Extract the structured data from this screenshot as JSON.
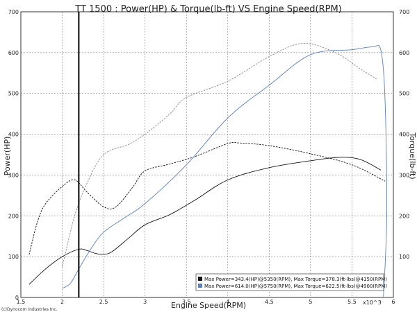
{
  "chart_data": {
    "type": "line",
    "title": "TT 1500 : Power(HP) & Torque(lb-ft) VS Engine Speed(RPM)",
    "xlabel": "Engine Speed(RPM)",
    "ylabel_left": "Power(HP)",
    "ylabel_right": "Torque(lb-ft)",
    "x_multiplier": "x10^3",
    "xlim": [
      1.5,
      6
    ],
    "ylim": [
      0,
      700
    ],
    "x_ticks": [
      "1.5",
      "2",
      "2.5",
      "3",
      "3.5",
      "4",
      "4.5",
      "5",
      "5.5",
      "6"
    ],
    "y_ticks_left": [
      "0",
      "100",
      "200",
      "300",
      "400",
      "500",
      "600",
      "700"
    ],
    "y_ticks_right": [
      "100",
      "200",
      "300",
      "400",
      "500",
      "600",
      "700"
    ],
    "grid": true,
    "marker_rpm": 2.2,
    "legend": {
      "position": "bottom-right",
      "entries": [
        {
          "label": "Max Power=343.4(HP)@5350(RPM), Max Torque=378.3(ft-lbs)@4150(RPM)",
          "color": "#111111"
        },
        {
          "label": "Max Power=614.0(HP)@5750(RPM), Max Torque=622.5(ft-lbs)@4900(RPM)",
          "color": "#5b7fc7"
        }
      ]
    },
    "series": [
      {
        "run": 1,
        "quantity": "power",
        "color": "#111111",
        "dashed": false,
        "x": [
          1.6,
          1.8,
          2.0,
          2.2,
          2.3,
          2.4,
          2.5,
          2.6,
          2.8,
          3.0,
          3.3,
          3.6,
          4.0,
          4.5,
          5.0,
          5.35,
          5.6,
          5.85
        ],
        "y": [
          32,
          70,
          100,
          118,
          115,
          108,
          106,
          112,
          145,
          178,
          203,
          238,
          288,
          318,
          335,
          343.4,
          338,
          312
        ]
      },
      {
        "run": 1,
        "quantity": "torque",
        "color": "#111111",
        "dashed": true,
        "x": [
          1.6,
          1.7,
          1.8,
          2.0,
          2.15,
          2.3,
          2.5,
          2.65,
          2.85,
          3.0,
          3.3,
          3.6,
          4.0,
          4.15,
          4.5,
          5.0,
          5.5,
          5.9
        ],
        "y": [
          105,
          185,
          230,
          272,
          288,
          258,
          222,
          222,
          270,
          310,
          327,
          345,
          377,
          378.3,
          372,
          352,
          325,
          285
        ]
      },
      {
        "run": 2,
        "quantity": "power",
        "color": "#5b7fc7",
        "dashed": false,
        "x": [
          2.0,
          2.1,
          2.2,
          2.35,
          2.5,
          2.75,
          3.0,
          3.5,
          4.0,
          4.5,
          5.0,
          5.5,
          5.75,
          5.85,
          5.9,
          5.92,
          5.88
        ],
        "y": [
          22,
          35,
          70,
          120,
          160,
          195,
          230,
          325,
          440,
          520,
          595,
          607,
          614,
          605,
          480,
          200,
          0
        ]
      },
      {
        "run": 2,
        "quantity": "torque",
        "color": "#8a8a8a",
        "dashed": true,
        "x": [
          2.0,
          2.15,
          2.3,
          2.5,
          2.8,
          3.0,
          3.3,
          3.5,
          4.0,
          4.5,
          4.9,
          5.3,
          5.6,
          5.8
        ],
        "y": [
          75,
          200,
          280,
          350,
          375,
          400,
          450,
          490,
          530,
          590,
          622.5,
          600,
          560,
          535
        ]
      }
    ]
  },
  "credit": "(c)Dynocom Industries Inc."
}
